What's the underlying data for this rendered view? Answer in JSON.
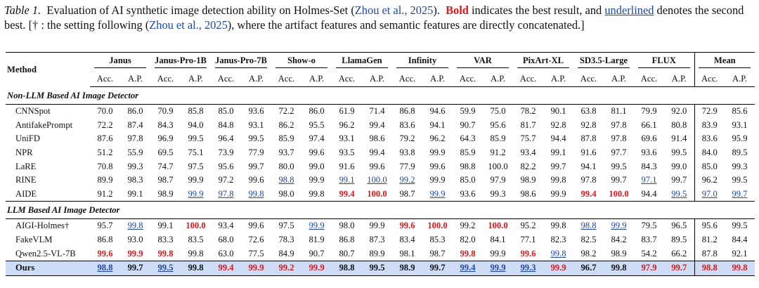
{
  "caption": {
    "label": "Table 1.",
    "part1": "Evaluation of AI synthetic image detection ability on Holmes-Set (",
    "cite1": "Zhou et al., 2025",
    "part2": "). ",
    "bold_word": "Bold",
    "part3": " indicates the best result, and ",
    "underline_word": "underlined",
    "part4": " denotes the second best. [† : the setting following (",
    "cite2": "Zhou et al., 2025",
    "part5": "), where the artifact features and semantic features are directly concatenated.]"
  },
  "table": {
    "method_header": "Method",
    "datasets": [
      "Janus",
      "Janus-Pro-1B",
      "Janus-Pro-7B",
      "Show-o",
      "LlamaGen",
      "Infinity",
      "VAR",
      "PixArt-XL",
      "SD3.5-Large",
      "FLUX",
      "Mean"
    ],
    "metric_labels": [
      "Acc.",
      "A.P."
    ],
    "groups": [
      {
        "title": "Non-LLM Based AI Image Detector",
        "rows": [
          {
            "method": "CNNSpot",
            "values": [
              "70.0",
              "86.0",
              "70.9",
              "85.8",
              "85.0",
              "93.6",
              "72.2",
              "86.0",
              "61.9",
              "71.4",
              "86.8",
              "94.6",
              "59.9",
              "75.0",
              "78.2",
              "90.1",
              "63.8",
              "81.1",
              "79.9",
              "92.0",
              "72.9",
              "85.6"
            ],
            "marks": []
          },
          {
            "method": "AntifakePrompt",
            "values": [
              "72.2",
              "87.4",
              "84.3",
              "94.0",
              "84.8",
              "93.1",
              "86.2",
              "95.5",
              "96.2",
              "99.4",
              "83.6",
              "94.1",
              "90.7",
              "95.6",
              "81.7",
              "92.8",
              "92.8",
              "97.8",
              "66.1",
              "80.8",
              "83.9",
              "93.1"
            ],
            "marks": []
          },
          {
            "method": "UniFD",
            "values": [
              "87.6",
              "97.8",
              "96.9",
              "99.5",
              "96.4",
              "99.5",
              "85.9",
              "97.4",
              "93.1",
              "98.6",
              "79.2",
              "96.2",
              "64.3",
              "85.9",
              "75.7",
              "94.4",
              "87.8",
              "97.8",
              "69.6",
              "91.4",
              "83.6",
              "95.9"
            ],
            "marks": []
          },
          {
            "method": "NPR",
            "values": [
              "51.2",
              "55.9",
              "69.5",
              "75.1",
              "73.9",
              "77.9",
              "93.7",
              "99.6",
              "93.5",
              "99.4",
              "93.8",
              "99.9",
              "85.9",
              "91.2",
              "93.4",
              "99.1",
              "91.6",
              "97.7",
              "93.6",
              "99.5",
              "84.0",
              "89.5"
            ],
            "marks": []
          },
          {
            "method": "LaRE",
            "values": [
              "70.8",
              "99.3",
              "74.7",
              "97.5",
              "95.6",
              "99.7",
              "80.0",
              "99.0",
              "91.6",
              "99.6",
              "77.9",
              "99.6",
              "98.8",
              "100.0",
              "82.2",
              "99.7",
              "94.1",
              "99.5",
              "84.3",
              "99.0",
              "85.0",
              "99.3"
            ],
            "marks": []
          },
          {
            "method": "RINE",
            "values": [
              "89.9",
              "98.3",
              "98.7",
              "99.9",
              "97.2",
              "99.6",
              "98.8",
              "99.9",
              "99.1",
              "100.0",
              "99.2",
              "99.9",
              "85.0",
              "97.9",
              "98.9",
              "99.8",
              "97.8",
              "99.7",
              "97.1",
              "99.7",
              "96.2",
              "99.5"
            ],
            "marks": [
              "",
              "",
              "",
              "",
              "",
              "",
              "s",
              "",
              "s",
              "s",
              "s",
              "",
              "",
              "",
              "",
              "",
              "",
              "",
              "s",
              "",
              "",
              ""
            ]
          },
          {
            "method": "AIDE",
            "values": [
              "91.2",
              "99.1",
              "98.9",
              "99.9",
              "97.8",
              "99.8",
              "98.0",
              "99.8",
              "99.4",
              "100.0",
              "98.7",
              "99.9",
              "93.6",
              "99.3",
              "98.6",
              "99.9",
              "99.4",
              "100.0",
              "94.4",
              "99.5",
              "97.0",
              "99.7"
            ],
            "marks": [
              "",
              "",
              "",
              "s",
              "s",
              "s",
              "",
              "",
              "b",
              "b",
              "",
              "s",
              "",
              "",
              "",
              "",
              "b",
              "b",
              "",
              "s",
              "s",
              "s"
            ]
          }
        ]
      },
      {
        "title": "LLM Based AI Image Detector",
        "rows": [
          {
            "method": "AIGI-Holmes†",
            "values": [
              "95.7",
              "99.8",
              "99.1",
              "100.0",
              "93.4",
              "99.6",
              "97.5",
              "99.9",
              "98.0",
              "99.9",
              "99.6",
              "100.0",
              "99.2",
              "100.0",
              "95.2",
              "99.8",
              "98.8",
              "99.9",
              "79.5",
              "96.5",
              "95.6",
              "99.5"
            ],
            "marks": [
              "",
              "s",
              "",
              "b",
              "",
              "",
              "",
              "s",
              "",
              "",
              "b",
              "b",
              "",
              "b",
              "",
              "",
              "s",
              "s",
              "",
              "",
              "",
              ""
            ]
          },
          {
            "method": "FakeVLM",
            "values": [
              "86.8",
              "93.0",
              "83.3",
              "83.5",
              "68.0",
              "72.6",
              "78.3",
              "81.9",
              "86.8",
              "87.3",
              "83.4",
              "85.3",
              "82.0",
              "84.1",
              "77.1",
              "82.3",
              "82.5",
              "84.2",
              "83.7",
              "89.5",
              "81.2",
              "84.4"
            ],
            "marks": []
          },
          {
            "method": "Qwen2.5-VL-7B",
            "values": [
              "99.6",
              "99.9",
              "99.8",
              "99.8",
              "63.0",
              "77.5",
              "84.9",
              "90.7",
              "80.7",
              "89.9",
              "98.1",
              "98.7",
              "99.8",
              "99.9",
              "99.6",
              "99.8",
              "98.2",
              "98.9",
              "54.2",
              "66.2",
              "87.8",
              "92.1"
            ],
            "marks": [
              "b",
              "b",
              "b",
              "",
              "",
              "",
              "",
              "",
              "",
              "",
              "",
              "",
              "b",
              "",
              "b",
              "s",
              "",
              "",
              "",
              "",
              "",
              ""
            ]
          }
        ]
      }
    ],
    "ours": {
      "method": "Ours",
      "values": [
        "98.8",
        "99.7",
        "99.5",
        "99.8",
        "99.4",
        "99.9",
        "99.2",
        "99.9",
        "98.8",
        "99.5",
        "98.9",
        "99.7",
        "99.4",
        "99.9",
        "99.3",
        "99.9",
        "96.7",
        "99.8",
        "97.9",
        "99.7",
        "98.8",
        "99.8"
      ],
      "marks": [
        "s",
        "",
        "s",
        "",
        "b",
        "b",
        "b",
        "b",
        "",
        "",
        "",
        "",
        "s",
        "s",
        "s",
        "b",
        "",
        "",
        "b",
        "b",
        "b",
        "b"
      ]
    }
  }
}
